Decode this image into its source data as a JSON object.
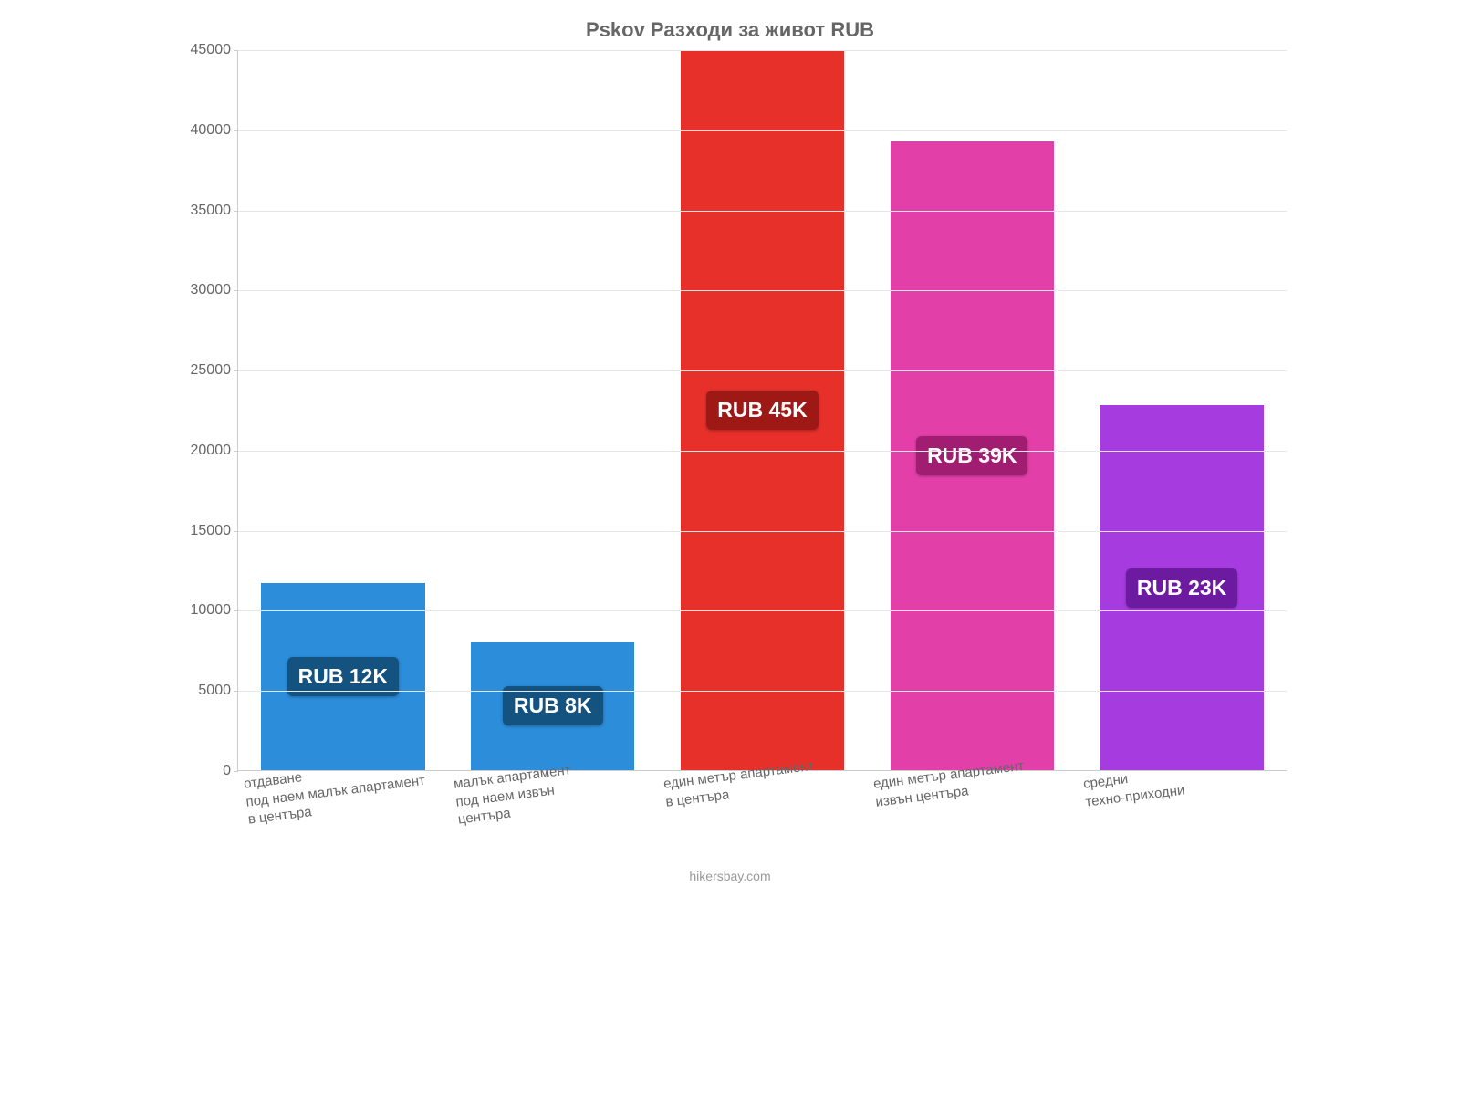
{
  "chart": {
    "type": "bar",
    "title": "Pskov Разходи за живот RUB",
    "title_fontsize": 22,
    "title_color": "#666666",
    "background_color": "#ffffff",
    "grid_color": "#e6e6e6",
    "axis_color": "#cccccc",
    "tick_label_color": "#666666",
    "tick_label_fontsize": 16,
    "xlabel_fontsize": 15,
    "xlabel_rotation_deg": -7,
    "bar_width_pct": 78,
    "ylim": [
      0,
      45000
    ],
    "yticks": [
      0,
      5000,
      10000,
      15000,
      20000,
      25000,
      30000,
      35000,
      40000,
      45000
    ],
    "categories": [
      "отдаване\nпод наем малък апартамент\nв центъра",
      "малък апартамент\nпод наем извън\nцентъра",
      "един метър апартамент\nв центъра",
      "един метър апартамент\nизвън центъра",
      "средни\nтехно-приходни"
    ],
    "values": [
      11700,
      8000,
      45000,
      39300,
      22800
    ],
    "value_labels": [
      "RUB 12K",
      "RUB 8K",
      "RUB 45K",
      "RUB 39K",
      "RUB 23K"
    ],
    "value_label_fontsize": 23,
    "bar_colors": [
      "#2c8ddb",
      "#2c8ddb",
      "#e7302a",
      "#e23fa8",
      "#a63ce0"
    ],
    "label_bg_colors": [
      "#14527f",
      "#14527f",
      "#9e1915",
      "#a11d72",
      "#6c1aa0"
    ],
    "credit": "hikersbay.com",
    "credit_color": "#999999",
    "credit_fontsize": 14
  }
}
